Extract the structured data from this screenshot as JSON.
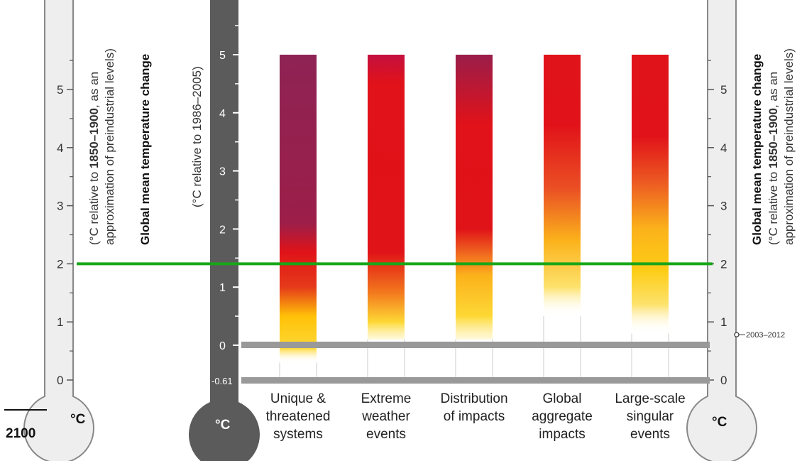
{
  "chart_data": {
    "type": "bar",
    "categories": [
      [
        "Unique &",
        "threatened",
        "systems"
      ],
      [
        "Extreme",
        "weather",
        "events"
      ],
      [
        "Distribution",
        "of impacts"
      ],
      [
        "Global",
        "aggregate",
        "impacts"
      ],
      [
        "Large-scale",
        "singular",
        "events"
      ]
    ],
    "center_axis": {
      "title": "(°C relative to 1986–2005)",
      "unit": "°C",
      "ticks": [
        0,
        1,
        2,
        3,
        4,
        5
      ],
      "baseline_label": "-0.61",
      "range": [
        -0.61,
        5
      ]
    },
    "side_axes": {
      "title": "Global mean temperature change",
      "subtitle_pre": "(°C relative to ",
      "subtitle_bold": "1850–1900",
      "subtitle_post": ", as an",
      "subtitle_line2": "approximation of preindustrial levels)",
      "unit": "°C",
      "ticks": [
        0,
        1,
        2,
        3,
        4,
        5
      ]
    },
    "bars": [
      {
        "y_start": -0.3,
        "y_end": 5,
        "stops": [
          [
            -0.3,
            "#ffffff",
            0
          ],
          [
            -0.05,
            "#fdd835",
            1
          ],
          [
            0.5,
            "#ffc107",
            1
          ],
          [
            1.0,
            "#e53a1a",
            1
          ],
          [
            1.6,
            "#e01318",
            1
          ],
          [
            2.1,
            "#9c1e49",
            1
          ],
          [
            5,
            "#8e2354",
            1
          ]
        ]
      },
      {
        "y_start": 0.1,
        "y_end": 5,
        "stops": [
          [
            0.1,
            "#fff0a0",
            0.4
          ],
          [
            0.4,
            "#fdd835",
            1
          ],
          [
            0.9,
            "#f37a1d",
            1
          ],
          [
            1.6,
            "#e01318",
            1
          ],
          [
            4.5,
            "#e11219",
            1
          ],
          [
            5,
            "#c4103f",
            1
          ]
        ]
      },
      {
        "y_start": 0.1,
        "y_end": 5,
        "stops": [
          [
            0.1,
            "#fff0a0",
            0.4
          ],
          [
            0.5,
            "#fdd835",
            1
          ],
          [
            1.2,
            "#fbb21b",
            1
          ],
          [
            1.6,
            "#ef641f",
            1
          ],
          [
            2.0,
            "#e01318",
            1
          ],
          [
            3.8,
            "#e11219",
            1
          ],
          [
            5,
            "#9a1d4a",
            1
          ]
        ]
      },
      {
        "y_start": 0.5,
        "y_end": 5,
        "stops": [
          [
            0.5,
            "#ffffff",
            0
          ],
          [
            1.0,
            "#fde26c",
            1
          ],
          [
            1.8,
            "#fbb21b",
            1
          ],
          [
            2.7,
            "#ea4f24",
            1
          ],
          [
            3.8,
            "#e11219",
            1
          ],
          [
            5,
            "#e0121a",
            1
          ]
        ]
      },
      {
        "y_start": 0.2,
        "y_end": 5,
        "stops": [
          [
            0.2,
            "#ffffff",
            0
          ],
          [
            0.7,
            "#fde26c",
            1
          ],
          [
            1.3,
            "#fdcc15",
            1
          ],
          [
            2.0,
            "#fbb21b",
            1
          ],
          [
            2.8,
            "#ec5a22",
            1
          ],
          [
            3.6,
            "#e11219",
            1
          ],
          [
            5,
            "#e0121a",
            1
          ]
        ]
      }
    ],
    "reference_line": {
      "value_1850": 2.0,
      "color": "#19a619"
    },
    "annotation": {
      "label": "2003–2012",
      "value_1850": 0.78
    },
    "year_label": "2100"
  }
}
